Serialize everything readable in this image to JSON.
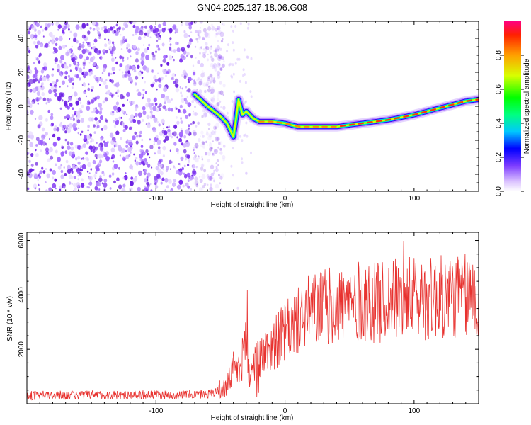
{
  "title": "GN04.2025.137.18.06.G08",
  "chart_data": [
    {
      "type": "heatmap",
      "xlabel": "Height of straight line (km)",
      "ylabel": "Frequency (Hz)",
      "xlim": [
        -200,
        150
      ],
      "ylim": [
        -50,
        50
      ],
      "xticks": [
        -100,
        0,
        100
      ],
      "yticks": [
        -40,
        -20,
        0,
        20,
        40
      ],
      "colorbar": {
        "label": "Normalized spectral amplitude",
        "range": [
          0,
          1
        ],
        "ticks": [
          "0.0",
          "0.2",
          "0.4",
          "0.6",
          "0.8"
        ],
        "tick_values": [
          0,
          0.2,
          0.4,
          0.6,
          0.8
        ]
      },
      "ridge": {
        "x": [
          -70,
          -60,
          -50,
          -45,
          -40,
          -38,
          -36,
          -33,
          -30,
          -25,
          -20,
          -10,
          0,
          10,
          20,
          40,
          60,
          80,
          100,
          120,
          140,
          150
        ],
        "y": [
          7,
          0,
          -6,
          -10,
          -18,
          -8,
          4,
          -5,
          -3,
          -7,
          -9,
          -9,
          -10,
          -12,
          -12,
          -12,
          -10,
          -8,
          -5,
          -1,
          3,
          4
        ]
      },
      "noise_region_x": [
        -200,
        -55
      ]
    },
    {
      "type": "line",
      "xlabel": "Height of straight line (km)",
      "ylabel": "SNR (10 * v/v)",
      "xlim": [
        -200,
        150
      ],
      "ylim": [
        0,
        6300
      ],
      "xticks": [
        -100,
        0,
        100
      ],
      "yticks": [
        2000,
        4000,
        6000
      ],
      "line_color": "#e8322f",
      "envelope": {
        "x": [
          -200,
          -150,
          -100,
          -60,
          -45,
          -40,
          -35,
          -30,
          -28,
          -25,
          -20,
          -15,
          -10,
          -5,
          0,
          5,
          10,
          15,
          20,
          25,
          30,
          40,
          50,
          60,
          70,
          80,
          90,
          100,
          110,
          120,
          130,
          140,
          150
        ],
        "y": [
          300,
          320,
          330,
          350,
          600,
          1300,
          1200,
          2400,
          1000,
          1300,
          1700,
          1900,
          2100,
          2400,
          2600,
          2850,
          3000,
          3300,
          3400,
          3500,
          3550,
          3600,
          3700,
          3750,
          3700,
          3800,
          3850,
          3900,
          3850,
          3900,
          3950,
          3950,
          4000
        ]
      }
    }
  ]
}
